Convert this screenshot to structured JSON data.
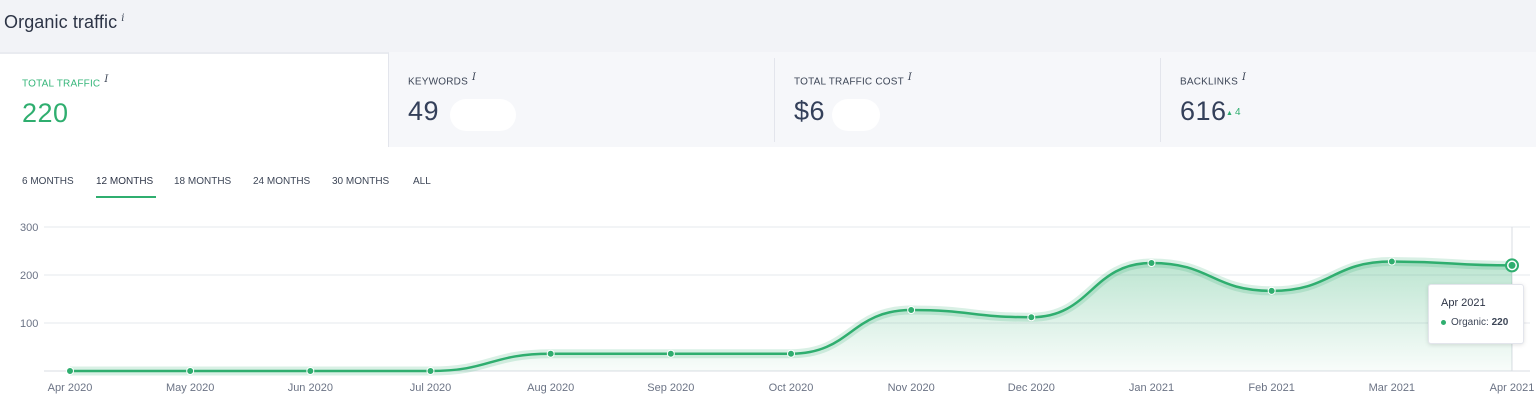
{
  "page": {
    "title": "Organic traffic",
    "info_glyph": "i"
  },
  "cards": [
    {
      "label": "TOTAL TRAFFIC",
      "value": "220",
      "info_glyph": "i",
      "active": true
    },
    {
      "label": "KEYWORDS",
      "value": "49",
      "info_glyph": "i"
    },
    {
      "label": "TOTAL TRAFFIC COST",
      "value": "$6",
      "info_glyph": "i"
    },
    {
      "label": "BACKLINKS",
      "value": "616",
      "info_glyph": "i",
      "delta": "4"
    }
  ],
  "period_tabs": [
    "6 MONTHS",
    "12 MONTHS",
    "18 MONTHS",
    "24 MONTHS",
    "30 MONTHS",
    "ALL"
  ],
  "selected_period": "12 MONTHS",
  "colors": {
    "accent": "#2fae6f",
    "grid": "#e6e8ed"
  },
  "tooltip": {
    "title": "Apr 2021",
    "series": "Organic",
    "value": "220"
  },
  "chart_data": {
    "type": "area",
    "categories": [
      "Apr 2020",
      "May 2020",
      "Jun 2020",
      "Jul 2020",
      "Aug 2020",
      "Sep 2020",
      "Oct 2020",
      "Nov 2020",
      "Dec 2020",
      "Jan 2021",
      "Feb 2021",
      "Mar 2021",
      "Apr 2021"
    ],
    "series": [
      {
        "name": "Organic",
        "values": [
          0,
          0,
          0,
          0,
          36,
          36,
          36,
          127,
          112,
          225,
          167,
          228,
          220
        ]
      }
    ],
    "ylim": [
      0,
      300
    ],
    "yticks": [
      100,
      200,
      300
    ],
    "grid": true,
    "title": "",
    "xlabel": "",
    "ylabel": ""
  }
}
